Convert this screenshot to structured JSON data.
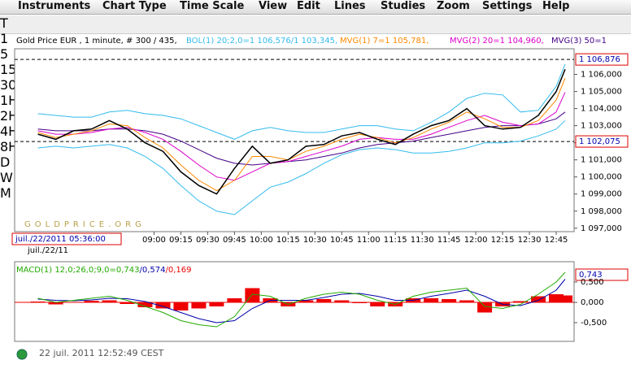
{
  "menu": [
    "Instruments",
    "Chart Type",
    "Time Scale",
    "View",
    "Edit",
    "Lines",
    "Studies",
    "Zoom",
    "Settings",
    "Help"
  ],
  "toolbar": {
    "buttons": [
      "T",
      "1",
      "5",
      "15",
      "30",
      "1H",
      "2H",
      "4H",
      "8H",
      "D",
      "W",
      "M"
    ]
  },
  "chart_data": [
    {
      "type": "line",
      "title": "Gold Price EUR , 1 minute, # 300 / 435,",
      "legend": [
        "BOL(1) 20;2,0=1 106,576/1 103,345,",
        "MVG(1) 7=1 105,781,",
        "MVG(2) 20=1 104,960,",
        "MVG(3) 50=1"
      ],
      "watermark": "GOLDPRICE.ORG",
      "date_box": "juil./22/2011 05:36:00",
      "date_label": "juil./22/11",
      "x": [
        475,
        485,
        495,
        505,
        515,
        525,
        535,
        545,
        555,
        565,
        575,
        585,
        595,
        605,
        615,
        625,
        635,
        645,
        655,
        665,
        675,
        685,
        695,
        705,
        715,
        725,
        735,
        745,
        755,
        765,
        770
      ],
      "xlim": [
        462,
        775
      ],
      "xticks": [
        {
          "value": 540,
          "label": "09:00"
        },
        {
          "value": 555,
          "label": "09:15"
        },
        {
          "value": 570,
          "label": "09:30"
        },
        {
          "value": 585,
          "label": "09:45"
        },
        {
          "value": 600,
          "label": "10:00"
        },
        {
          "value": 615,
          "label": "10:15"
        },
        {
          "value": 630,
          "label": "10:30"
        },
        {
          "value": 645,
          "label": "10:45"
        },
        {
          "value": 660,
          "label": "11:00"
        },
        {
          "value": 675,
          "label": "11:15"
        },
        {
          "value": 690,
          "label": "11:30"
        },
        {
          "value": 705,
          "label": "11:45"
        },
        {
          "value": 720,
          "label": "12:00"
        },
        {
          "value": 735,
          "label": "12:15"
        },
        {
          "value": 750,
          "label": "12:30"
        },
        {
          "value": 765,
          "label": "12:45"
        }
      ],
      "ylim": [
        1096800,
        1107500
      ],
      "yticks": [
        {
          "value": 1097000,
          "label": "1 097,000"
        },
        {
          "value": 1098000,
          "label": "1 098,000"
        },
        {
          "value": 1099000,
          "label": "1 099,000"
        },
        {
          "value": 1100000,
          "label": "1 100,000"
        },
        {
          "value": 1101000,
          "label": "1 101,000"
        },
        {
          "value": 1102000,
          "label": "1 102,000"
        },
        {
          "value": 1103000,
          "label": "1 103,000"
        },
        {
          "value": 1104000,
          "label": "1 104,000"
        },
        {
          "value": 1105000,
          "label": "1 105,000"
        },
        {
          "value": 1106000,
          "label": "1 106,000"
        }
      ],
      "ref_lines": [
        {
          "value": 1106876,
          "label": "1 106,876"
        },
        {
          "value": 1102075,
          "label": "1 102,075"
        }
      ],
      "series": [
        {
          "name": "Gold Price EUR",
          "color": "#000000",
          "values": [
            1102500,
            1102200,
            1102700,
            1102800,
            1103300,
            1102800,
            1102000,
            1101500,
            1100300,
            1099500,
            1099000,
            1100500,
            1101800,
            1100800,
            1101000,
            1101800,
            1101900,
            1102400,
            1102600,
            1102200,
            1101900,
            1102500,
            1103000,
            1103300,
            1104000,
            1103000,
            1102800,
            1102900,
            1103600,
            1105000,
            1106300
          ]
        },
        {
          "name": "BOL upper",
          "color": "#33bbee",
          "values": [
            1103700,
            1103600,
            1103500,
            1103500,
            1103800,
            1103900,
            1103700,
            1103600,
            1103400,
            1103000,
            1102600,
            1102200,
            1102700,
            1102900,
            1102700,
            1102600,
            1102600,
            1102800,
            1103000,
            1103000,
            1102800,
            1102700,
            1103200,
            1103800,
            1104600,
            1104900,
            1104800,
            1103800,
            1103900,
            1105300,
            1106600
          ]
        },
        {
          "name": "BOL lower",
          "color": "#33bbee",
          "values": [
            1101700,
            1101800,
            1101700,
            1101800,
            1101900,
            1101700,
            1101200,
            1100500,
            1099500,
            1098600,
            1098000,
            1097800,
            1098600,
            1099400,
            1099700,
            1100200,
            1100800,
            1101300,
            1101600,
            1101700,
            1101600,
            1101400,
            1101400,
            1101500,
            1101700,
            1102000,
            1102000,
            1102100,
            1102400,
            1102800,
            1103300
          ]
        },
        {
          "name": "MVG(1)",
          "color": "#ff8800",
          "values": [
            1102600,
            1102300,
            1102500,
            1102700,
            1103100,
            1103000,
            1102300,
            1101700,
            1100700,
            1099800,
            1099200,
            1099800,
            1101200,
            1101200,
            1101000,
            1101500,
            1101800,
            1102200,
            1102500,
            1102300,
            1102000,
            1102300,
            1102800,
            1103200,
            1103800,
            1103400,
            1102900,
            1102900,
            1103300,
            1104500,
            1105780
          ]
        },
        {
          "name": "MVG(2)",
          "color": "#dd00cc",
          "values": [
            1102700,
            1102500,
            1102500,
            1102600,
            1102800,
            1102900,
            1102600,
            1102200,
            1101500,
            1100700,
            1100000,
            1099800,
            1100300,
            1100800,
            1100900,
            1101200,
            1101500,
            1101800,
            1102200,
            1102300,
            1102200,
            1102200,
            1102500,
            1102900,
            1103300,
            1103600,
            1103200,
            1103000,
            1103100,
            1103800,
            1104960
          ]
        },
        {
          "name": "MVG(3)",
          "color": "#440088",
          "values": [
            1102800,
            1102700,
            1102700,
            1102700,
            1102800,
            1102800,
            1102700,
            1102500,
            1102100,
            1101600,
            1101100,
            1100800,
            1100700,
            1100800,
            1100900,
            1101000,
            1101200,
            1101400,
            1101700,
            1101900,
            1102000,
            1102100,
            1102300,
            1102500,
            1102700,
            1102900,
            1103000,
            1103000,
            1103100,
            1103400,
            1103800
          ]
        }
      ]
    },
    {
      "type": "macd",
      "legend": [
        "MACD(1) 12,0;26,0;9,0=0,743",
        "/0,574",
        "/0,169"
      ],
      "value_box": "0,743",
      "ylim": [
        -0.96,
        1.0
      ],
      "yticks": [
        {
          "value": 0.5,
          "label": "0,500"
        },
        {
          "value": 0,
          "label": "0,000"
        },
        {
          "value": -0.5,
          "label": "-0,500"
        }
      ],
      "series": [
        {
          "name": "MACD",
          "color": "#22aa00",
          "values": [
            0.1,
            0,
            0.05,
            0.1,
            0.15,
            0.05,
            -0.1,
            -0.25,
            -0.45,
            -0.55,
            -0.6,
            -0.35,
            0.2,
            0.15,
            -0.05,
            0.1,
            0.2,
            0.25,
            0.2,
            0.05,
            -0.05,
            0.15,
            0.25,
            0.3,
            0.35,
            -0.1,
            -0.15,
            -0.05,
            0.2,
            0.5,
            0.74
          ]
        },
        {
          "name": "Signal",
          "color": "#0000aa",
          "values": [
            0.08,
            0.05,
            0.04,
            0.06,
            0.1,
            0.09,
            0.02,
            -0.1,
            -0.25,
            -0.4,
            -0.5,
            -0.45,
            -0.15,
            0.05,
            0.05,
            0.05,
            0.12,
            0.2,
            0.22,
            0.15,
            0.05,
            0.05,
            0.15,
            0.22,
            0.3,
            0.15,
            -0.05,
            -0.08,
            0.05,
            0.3,
            0.57
          ]
        },
        {
          "name": "Histogram",
          "color": "#ee0000",
          "values": [
            0.02,
            -0.05,
            0.01,
            0.04,
            0.05,
            -0.04,
            -0.12,
            -0.15,
            -0.2,
            -0.15,
            -0.1,
            0.1,
            0.35,
            0.1,
            -0.1,
            0.05,
            0.08,
            0.05,
            -0.02,
            -0.1,
            -0.1,
            0.1,
            0.1,
            0.08,
            0.05,
            -0.25,
            -0.1,
            0.03,
            0.15,
            0.2,
            0.17
          ]
        }
      ]
    }
  ],
  "status": "22 juil. 2011 12:52:49 CEST"
}
